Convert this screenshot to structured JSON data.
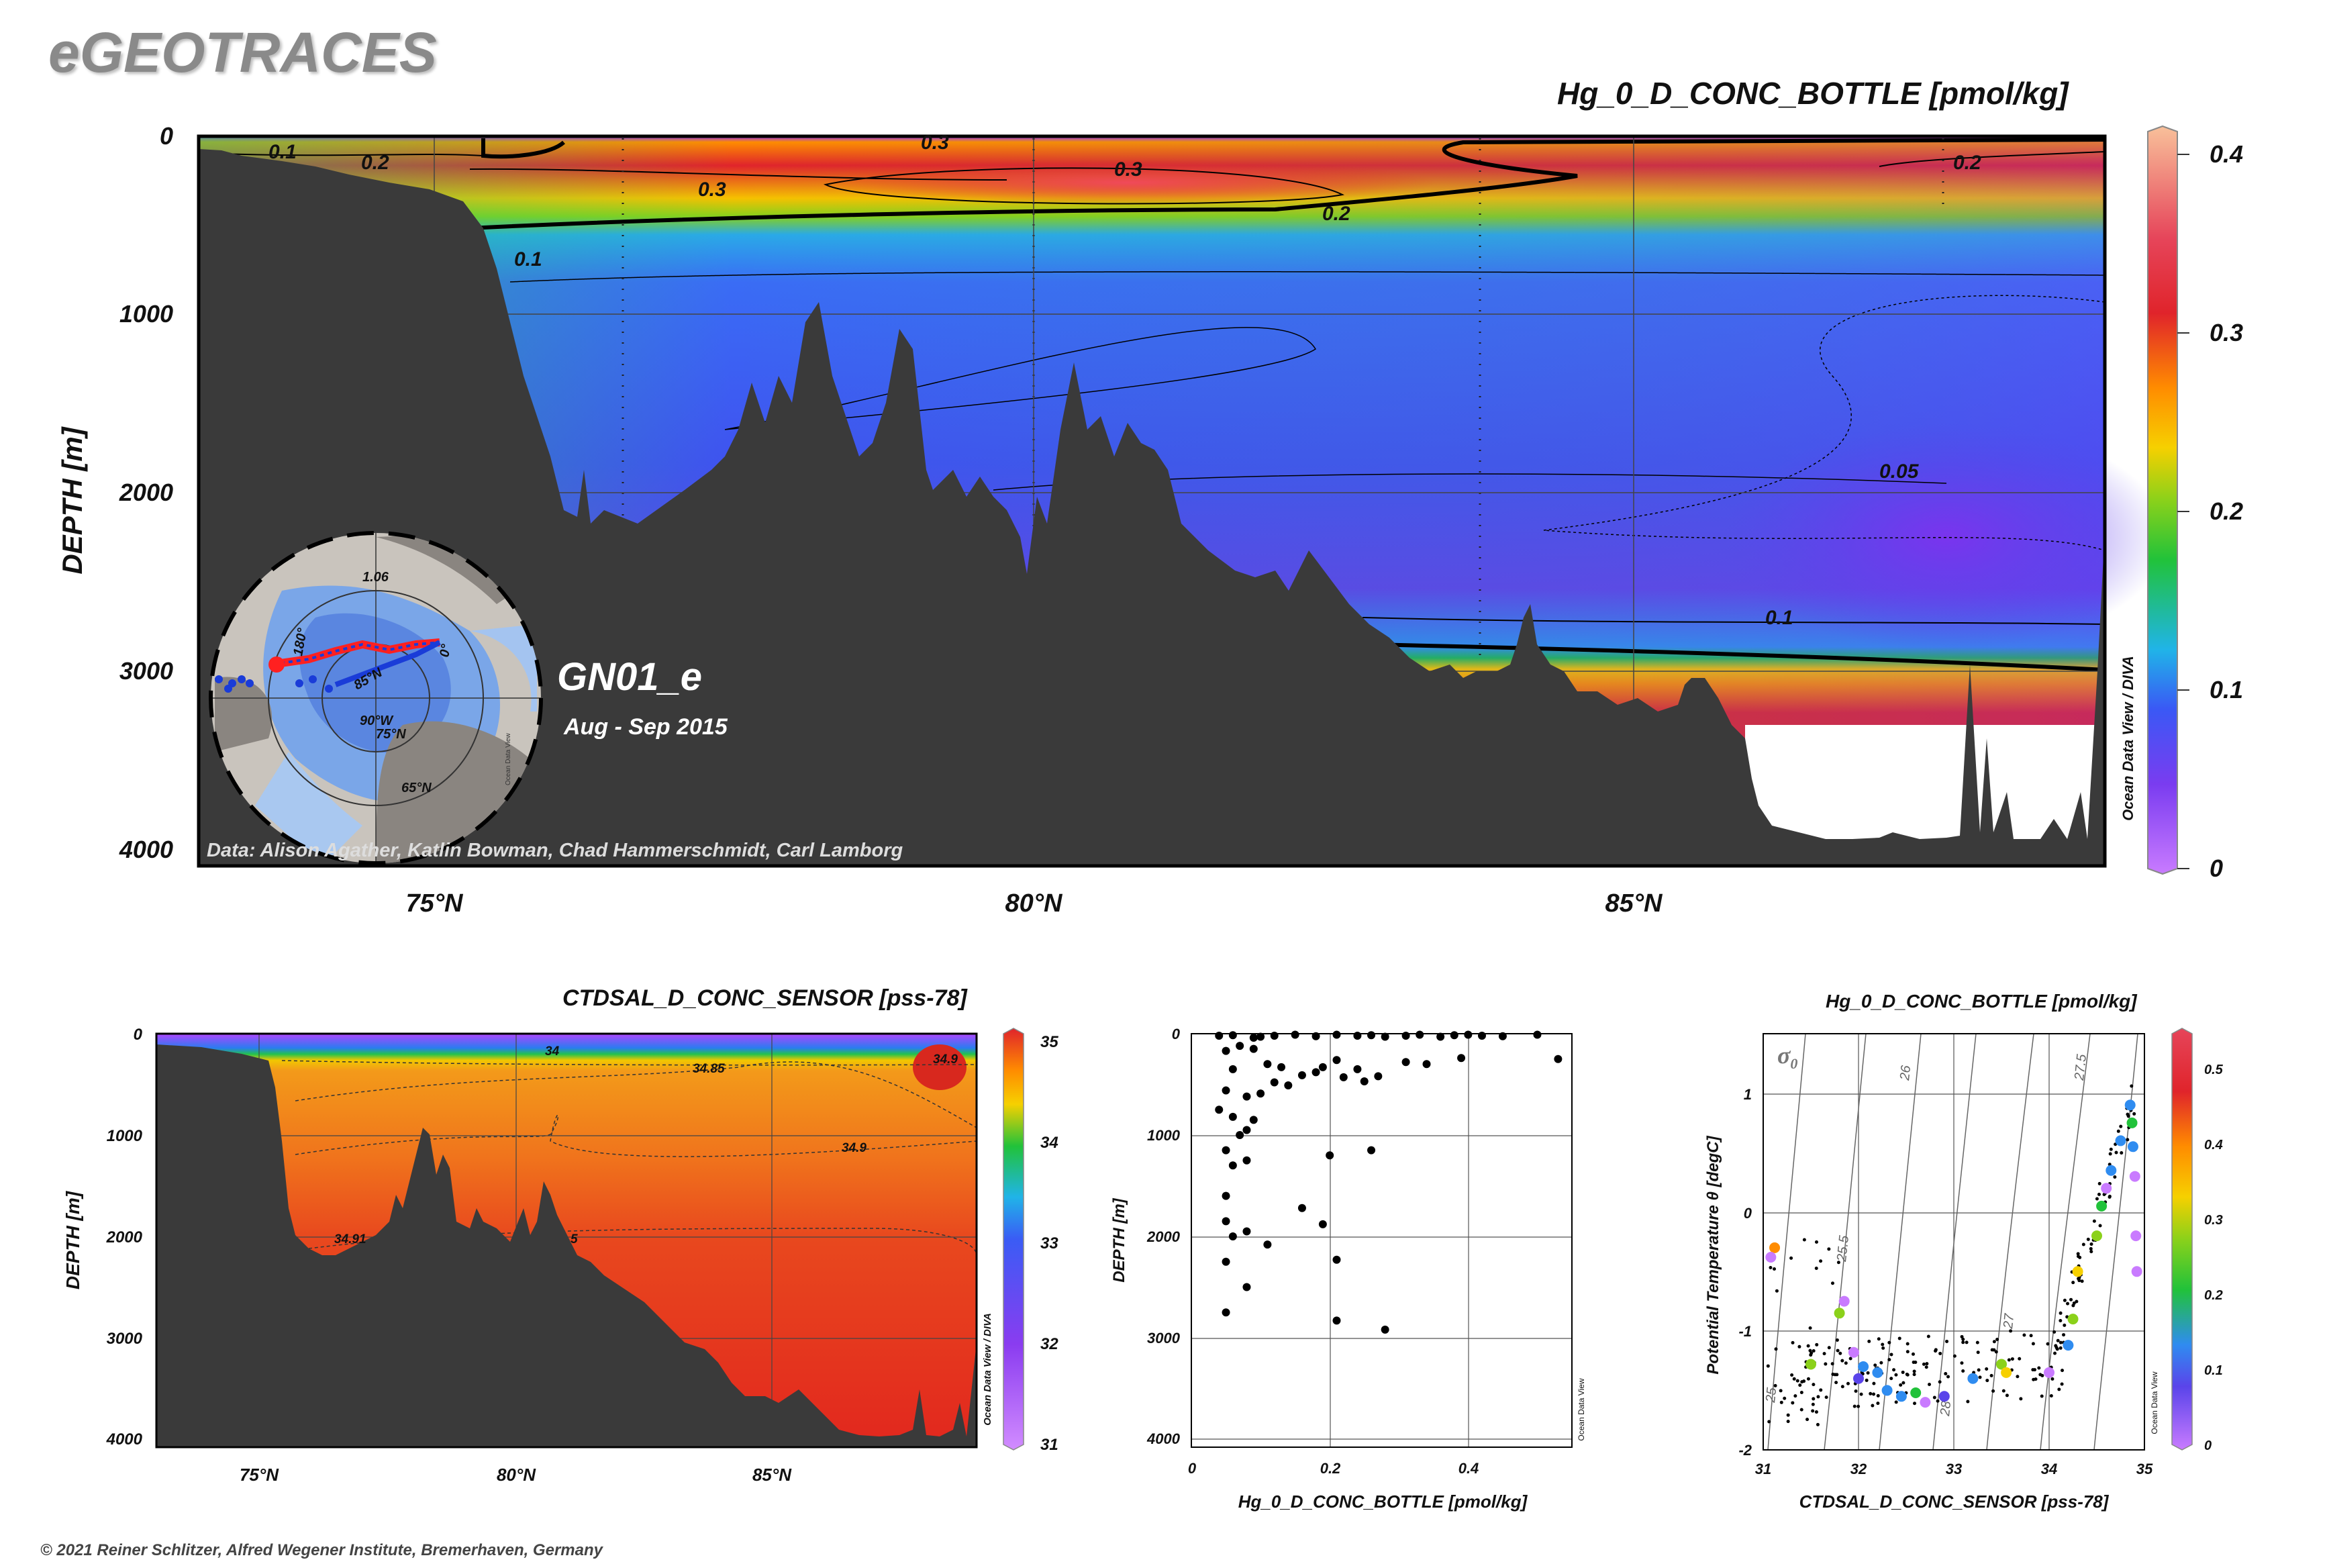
{
  "brand": "eGEOTRACES",
  "copyright": "© 2021 Reiner Schlitzer, Alfred Wegener Institute, Bremerhaven, Germany",
  "watermark": "Ocean Data View / DIVA",
  "watermark_short": "Ocean Data View",
  "colors": {
    "land": "#3a3a3a",
    "frame": "#000000",
    "seafloor_gap": "#ffffff"
  },
  "chart_data": [
    {
      "id": "main-section",
      "type": "heatmap",
      "title": "Hg_0_D_CONC_BOTTLE [pmol/kg]",
      "ylabel": "DEPTH [m]",
      "xlabel": "",
      "x_ticks": [
        "75°N",
        "80°N",
        "85°N"
      ],
      "x_tick_values": [
        75,
        80,
        85
      ],
      "xlim": [
        73,
        89
      ],
      "y_ticks": [
        "0",
        "1000",
        "2000",
        "3000",
        "4000"
      ],
      "y_tick_values": [
        0,
        1000,
        2000,
        3000,
        4000
      ],
      "ylim": [
        4000,
        0
      ],
      "colorbar_ticks": [
        "0",
        "0.1",
        "0.2",
        "0.3",
        "0.4"
      ],
      "colorbar_values": [
        0,
        0.1,
        0.2,
        0.3,
        0.4
      ],
      "contour_labels": [
        "0.1",
        "0.2",
        "0.3",
        "0.3",
        "0.3",
        "0.2",
        "0.2",
        "0.1",
        "0.05",
        "0.1"
      ],
      "cruise": "GN01_e",
      "period": "Aug - Sep 2015",
      "credits": "Data: Alison Agather, Katlin Bowman, Chad Hammerschmidt, Carl Lamborg",
      "inset_map_labels": [
        "1.06",
        "180°",
        "85°N",
        "0°",
        "90°W",
        "75°N",
        "65°N"
      ]
    },
    {
      "id": "salinity-section",
      "type": "heatmap",
      "title": "CTDSAL_D_CONC_SENSOR [pss-78]",
      "ylabel": "DEPTH [m]",
      "x_ticks": [
        "75°N",
        "80°N",
        "85°N"
      ],
      "x_tick_values": [
        75,
        80,
        85
      ],
      "xlim": [
        73,
        89
      ],
      "y_ticks": [
        "0",
        "1000",
        "2000",
        "3000",
        "4000"
      ],
      "y_tick_values": [
        0,
        1000,
        2000,
        3000,
        4000
      ],
      "ylim": [
        4000,
        0
      ],
      "colorbar_ticks": [
        "31",
        "32",
        "33",
        "34",
        "35"
      ],
      "colorbar_values": [
        31,
        32,
        33,
        34,
        35
      ],
      "contour_labels": [
        "34",
        "34.85",
        "34.9",
        "34.9",
        "34.91",
        "5"
      ]
    },
    {
      "id": "depth-profile",
      "type": "scatter",
      "xlabel": "Hg_0_D_CONC_BOTTLE [pmol/kg]",
      "ylabel": "DEPTH [m]",
      "xlim": [
        0,
        0.55
      ],
      "ylim": [
        4000,
        0
      ],
      "x_ticks": [
        "0",
        "0.2",
        "0.4"
      ],
      "x_tick_values": [
        0,
        0.2,
        0.4
      ],
      "y_ticks": [
        "0",
        "1000",
        "2000",
        "3000",
        "4000"
      ],
      "y_tick_values": [
        0,
        1000,
        2000,
        3000,
        4000
      ],
      "points": [
        [
          0.04,
          20
        ],
        [
          0.06,
          15
        ],
        [
          0.09,
          40
        ],
        [
          0.1,
          30
        ],
        [
          0.12,
          20
        ],
        [
          0.15,
          10
        ],
        [
          0.18,
          25
        ],
        [
          0.21,
          10
        ],
        [
          0.24,
          20
        ],
        [
          0.26,
          15
        ],
        [
          0.28,
          30
        ],
        [
          0.31,
          20
        ],
        [
          0.33,
          10
        ],
        [
          0.36,
          30
        ],
        [
          0.38,
          15
        ],
        [
          0.4,
          10
        ],
        [
          0.42,
          20
        ],
        [
          0.45,
          25
        ],
        [
          0.5,
          10
        ],
        [
          0.53,
          250
        ],
        [
          0.05,
          170
        ],
        [
          0.07,
          120
        ],
        [
          0.09,
          150
        ],
        [
          0.06,
          350
        ],
        [
          0.11,
          300
        ],
        [
          0.13,
          330
        ],
        [
          0.16,
          410
        ],
        [
          0.19,
          330
        ],
        [
          0.21,
          260
        ],
        [
          0.24,
          350
        ],
        [
          0.27,
          420
        ],
        [
          0.31,
          280
        ],
        [
          0.34,
          300
        ],
        [
          0.39,
          240
        ],
        [
          0.05,
          560
        ],
        [
          0.08,
          620
        ],
        [
          0.1,
          590
        ],
        [
          0.12,
          480
        ],
        [
          0.14,
          510
        ],
        [
          0.22,
          430
        ],
        [
          0.25,
          470
        ],
        [
          0.18,
          380
        ],
        [
          0.04,
          750
        ],
        [
          0.06,
          820
        ],
        [
          0.08,
          950
        ],
        [
          0.09,
          850
        ],
        [
          0.07,
          1000
        ],
        [
          0.05,
          1150
        ],
        [
          0.08,
          1250
        ],
        [
          0.06,
          1300
        ],
        [
          0.05,
          1600
        ],
        [
          0.05,
          1850
        ],
        [
          0.08,
          1950
        ],
        [
          0.06,
          2000
        ],
        [
          0.11,
          2080
        ],
        [
          0.16,
          1720
        ],
        [
          0.19,
          1880
        ],
        [
          0.21,
          2230
        ],
        [
          0.2,
          1200
        ],
        [
          0.26,
          1150
        ],
        [
          0.05,
          2250
        ],
        [
          0.08,
          2500
        ],
        [
          0.05,
          2750
        ],
        [
          0.21,
          2830
        ],
        [
          0.28,
          2920
        ]
      ]
    },
    {
      "id": "ts-diagram",
      "type": "scatter",
      "title": "Hg_0_D_CONC_BOTTLE [pmol/kg]",
      "xlabel": "CTDSAL_D_CONC_SENSOR [pss-78]",
      "ylabel": "Potential Temperature θ [degC]",
      "xlim": [
        31,
        35
      ],
      "ylim": [
        -2,
        1.5
      ],
      "x_ticks": [
        "31",
        "32",
        "33",
        "34",
        "35"
      ],
      "x_tick_values": [
        31,
        32,
        33,
        34,
        35
      ],
      "y_ticks": [
        "1",
        "0",
        "-1",
        "-2"
      ],
      "y_tick_values": [
        1,
        0,
        -1,
        -2
      ],
      "sigma_label": "σ",
      "sigma_subscript": "0",
      "isopycnals": [
        "25",
        "25.5",
        "26",
        "27",
        "27.5",
        "28"
      ],
      "colorbar_ticks": [
        "0",
        "0.1",
        "0.2",
        "0.3",
        "0.4",
        "0.5"
      ],
      "colorbar_values": [
        0,
        0.1,
        0.2,
        0.3,
        0.4,
        0.5
      ],
      "colored_points": [
        [
          31.12,
          -0.3,
          0.36
        ],
        [
          31.08,
          -0.38,
          0.07
        ],
        [
          31.85,
          -0.75,
          0.05
        ],
        [
          31.8,
          -0.85,
          0.25
        ],
        [
          31.5,
          -1.28,
          0.28
        ],
        [
          31.95,
          -1.18,
          0.07
        ],
        [
          32.05,
          -1.3,
          0.17
        ],
        [
          32.2,
          -1.35,
          0.12
        ],
        [
          32.3,
          -1.5,
          0.18
        ],
        [
          32.45,
          -1.55,
          0.15
        ],
        [
          32.6,
          -1.52,
          0.2
        ],
        [
          32.9,
          -1.55,
          0.1
        ],
        [
          33.2,
          -1.4,
          0.12
        ],
        [
          33.5,
          -1.28,
          0.27
        ],
        [
          33.55,
          -1.35,
          0.3
        ],
        [
          34.0,
          -1.35,
          0.05
        ],
        [
          34.2,
          -1.12,
          0.18
        ],
        [
          34.25,
          -0.9,
          0.25
        ],
        [
          34.3,
          -0.5,
          0.3
        ],
        [
          34.5,
          -0.2,
          0.28
        ],
        [
          34.55,
          0.05,
          0.2
        ],
        [
          34.65,
          0.35,
          0.15
        ],
        [
          34.75,
          0.6,
          0.18
        ],
        [
          34.85,
          0.9,
          0.17
        ],
        [
          34.88,
          0.55,
          0.12
        ],
        [
          34.9,
          0.3,
          0.05
        ],
        [
          34.91,
          -0.2,
          0.05
        ],
        [
          34.92,
          -0.5,
          0.04
        ],
        [
          34.87,
          0.75,
          0.22
        ],
        [
          34.6,
          0.2,
          0.05
        ],
        [
          32.7,
          -1.6,
          0.05
        ],
        [
          32.0,
          -1.4,
          0.1
        ]
      ]
    }
  ]
}
